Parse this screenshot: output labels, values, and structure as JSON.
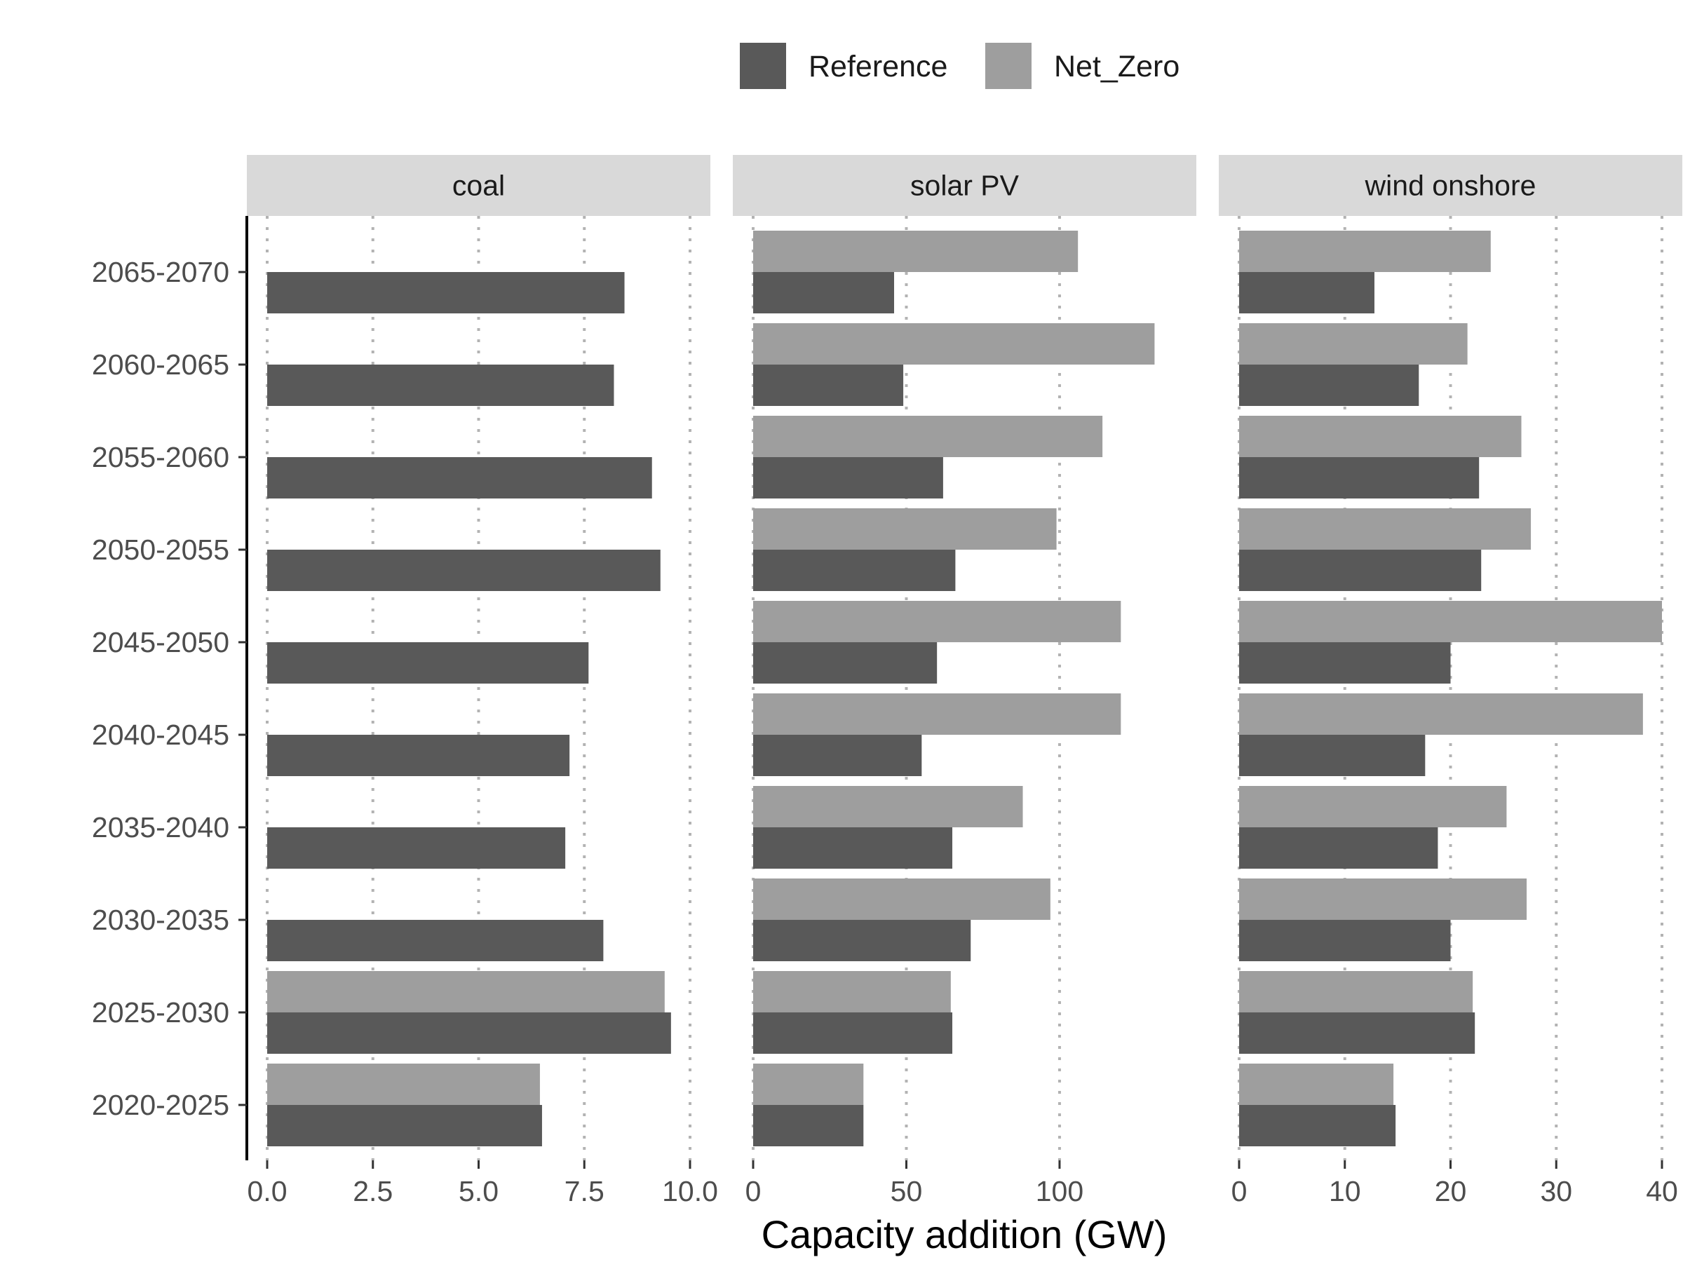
{
  "chart_data": {
    "type": "bar",
    "orientation": "horizontal",
    "facet": "panel",
    "xlabel": "Capacity addition (GW)",
    "ylabel": "",
    "legend_position": "top",
    "grid": "vertical dotted",
    "categories": [
      "2020-2025",
      "2025-2030",
      "2030-2035",
      "2035-2040",
      "2040-2045",
      "2045-2050",
      "2050-2055",
      "2055-2060",
      "2060-2065",
      "2065-2070"
    ],
    "series": [
      {
        "name": "Reference",
        "color": "#595959"
      },
      {
        "name": "Net_Zero",
        "color": "#9e9e9e"
      }
    ],
    "panels": [
      {
        "title": "coal",
        "xlim": [
          0,
          10
        ],
        "ticks": [
          0,
          2.5,
          5,
          7.5,
          10
        ],
        "tick_labels": [
          "0.0",
          "2.5",
          "5.0",
          "7.5",
          "10.0"
        ],
        "values": {
          "Reference": [
            6.5,
            9.55,
            7.95,
            7.05,
            7.15,
            7.6,
            9.3,
            9.1,
            8.2,
            8.45
          ],
          "Net_Zero": [
            6.45,
            9.4,
            null,
            null,
            null,
            null,
            null,
            null,
            null,
            null
          ]
        }
      },
      {
        "title": "solar PV",
        "xlim": [
          0,
          138
        ],
        "ticks": [
          0,
          50,
          100
        ],
        "tick_labels": [
          "0",
          "50",
          "100"
        ],
        "values": {
          "Reference": [
            36,
            65,
            71,
            65,
            55,
            60,
            66,
            62,
            49,
            46
          ],
          "Net_Zero": [
            36,
            64.5,
            97,
            88,
            120,
            120,
            99,
            114,
            131,
            106
          ]
        }
      },
      {
        "title": "wind onshore",
        "xlim": [
          0,
          40
        ],
        "ticks": [
          0,
          10,
          20,
          30,
          40
        ],
        "tick_labels": [
          "0",
          "10",
          "20",
          "30",
          "40"
        ],
        "values": {
          "Reference": [
            14.8,
            22.3,
            20,
            18.8,
            17.6,
            20,
            22.9,
            22.7,
            17,
            12.8
          ],
          "Net_Zero": [
            14.6,
            22.1,
            27.2,
            25.3,
            38.2,
            40,
            27.6,
            26.7,
            21.6,
            23.8
          ]
        }
      }
    ]
  }
}
